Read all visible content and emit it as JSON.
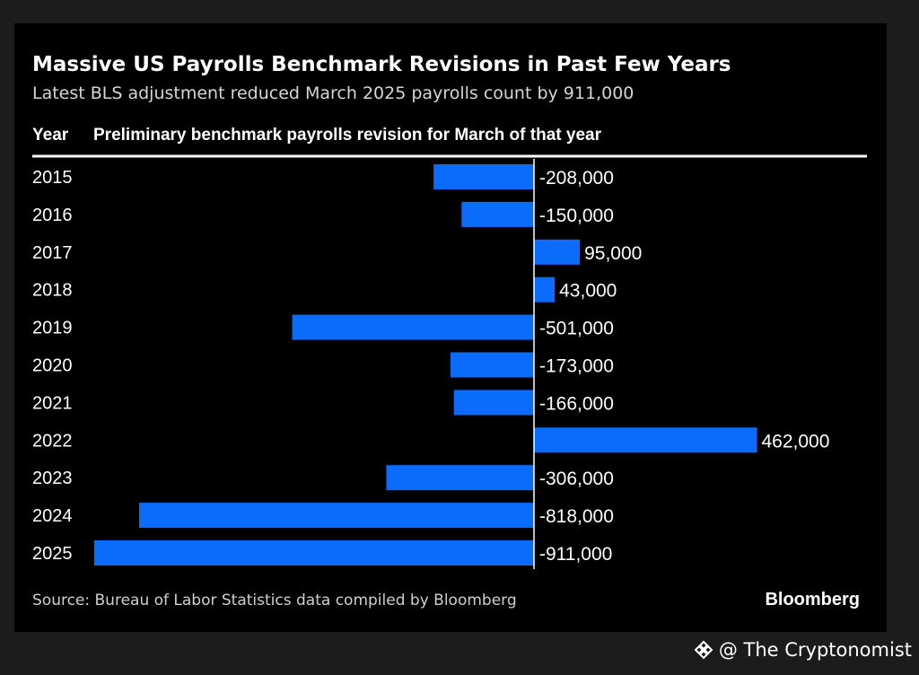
{
  "chart_data": {
    "type": "bar",
    "orientation": "horizontal",
    "title": "Massive US Payrolls Benchmark Revisions in Past Few Years",
    "subtitle": "Latest BLS adjustment reduced March 2025 payrolls count by 911,000",
    "column_headers": {
      "category": "Year",
      "value": "Preliminary benchmark payrolls revision for March of that year"
    },
    "categories": [
      "2015",
      "2016",
      "2017",
      "2018",
      "2019",
      "2020",
      "2021",
      "2022",
      "2023",
      "2024",
      "2025"
    ],
    "values": [
      -208000,
      -150000,
      95000,
      43000,
      -501000,
      -173000,
      -166000,
      462000,
      -306000,
      -818000,
      -911000
    ],
    "value_labels": [
      "-208,000",
      "-150,000",
      "95,000",
      "43,000",
      "-501,000",
      "-173,000",
      "-166,000",
      "462,000",
      "-306,000",
      "-818,000",
      "-911,000"
    ],
    "bar_color": "#0b6cfb",
    "xlim": [
      -911000,
      462000
    ],
    "grid": false,
    "legend": "none",
    "source": "Source: Bureau of Labor Statistics data compiled by Bloomberg",
    "brand": "Bloomberg"
  },
  "watermark": {
    "text": "@ The Cryptonomist",
    "icon": "binance-diamond-icon"
  }
}
